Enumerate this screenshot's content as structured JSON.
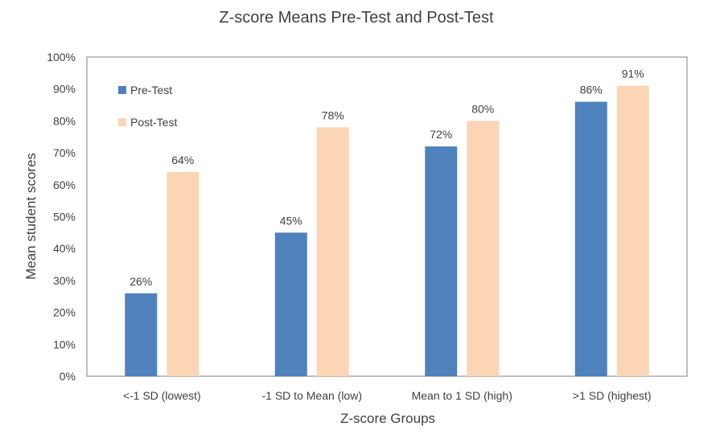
{
  "chart_data": {
    "type": "bar",
    "title": "Z-score Means Pre-Test and Post-Test",
    "xlabel": "Z-score Groups",
    "ylabel": "Mean student scores",
    "categories": [
      "<-1 SD (lowest)",
      "-1 SD to Mean (low)",
      "Mean to 1 SD (high)",
      ">1 SD (highest)"
    ],
    "series": [
      {
        "name": "Pre-Test",
        "values": [
          26,
          45,
          72,
          86
        ],
        "labels": [
          "26%",
          "45%",
          "72%",
          "86%"
        ],
        "color": "#4f81bd"
      },
      {
        "name": "Post-Test",
        "values": [
          64,
          78,
          80,
          91
        ],
        "labels": [
          "64%",
          "78%",
          "80%",
          "91%"
        ],
        "color": "#fcd5b5"
      }
    ],
    "ylim": [
      0,
      100
    ],
    "yticks": [
      "0%",
      "10%",
      "20%",
      "30%",
      "40%",
      "50%",
      "60%",
      "70%",
      "80%",
      "90%",
      "100%"
    ],
    "grid": false,
    "legend_position": "top-left inside plot"
  }
}
